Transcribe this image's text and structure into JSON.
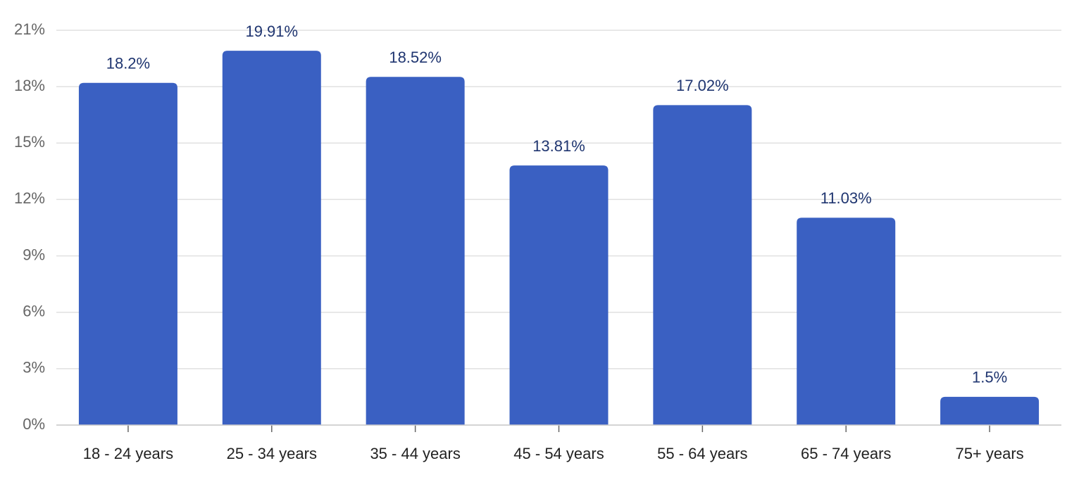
{
  "chart_data": {
    "type": "bar",
    "categories": [
      "18 - 24 years",
      "25 - 34 years",
      "35 - 44 years",
      "45 - 54 years",
      "55 - 64 years",
      "65 - 74 years",
      "75+ years"
    ],
    "values": [
      18.2,
      19.91,
      18.52,
      13.81,
      17.02,
      11.03,
      1.5
    ],
    "value_labels": [
      "18.2%",
      "19.91%",
      "18.52%",
      "13.81%",
      "17.02%",
      "11.03%",
      "1.5%"
    ],
    "color": "#3a60c2",
    "ylim": [
      0,
      21
    ],
    "yticks": [
      {
        "value": 0,
        "label": "0%"
      },
      {
        "value": 3,
        "label": "3%"
      },
      {
        "value": 6,
        "label": "6%"
      },
      {
        "value": 9,
        "label": "9%"
      },
      {
        "value": 12,
        "label": "12%"
      },
      {
        "value": 15,
        "label": "15%"
      },
      {
        "value": 18,
        "label": "18%"
      },
      {
        "value": 21,
        "label": "21%"
      }
    ],
    "grid": true
  }
}
